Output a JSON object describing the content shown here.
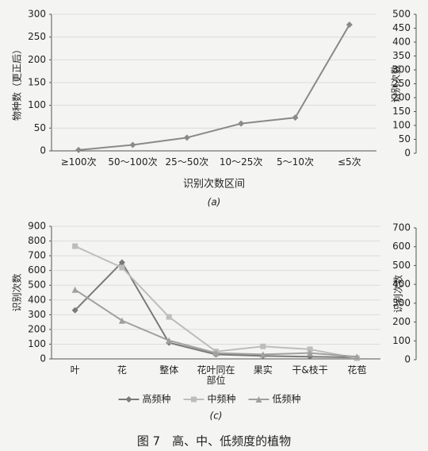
{
  "chart_data": [
    {
      "type": "line",
      "y_label": "物种数（更正后）",
      "x_label": "识别次数区间",
      "caption_label": "(a)",
      "categories": [
        "≥100次",
        "50～100次",
        "25～50次",
        "10～25次",
        "5～10次",
        "≤5次"
      ],
      "values": [
        2,
        13,
        29,
        60,
        73,
        277
      ],
      "color": "#8a8a8a",
      "marker": "diamond",
      "ylim": [
        0,
        300
      ],
      "yticks": [
        0,
        50,
        100,
        150,
        200,
        250,
        300
      ],
      "grid": true
    },
    {
      "type": "line",
      "y_label": "识别次数",
      "ylim": [
        0,
        500
      ],
      "yticks": [
        0,
        50,
        100,
        150,
        200,
        250,
        300,
        350,
        400,
        450,
        500
      ],
      "grid": false
    },
    {
      "type": "line",
      "y_label": "识别次数",
      "caption_label": "(c)",
      "categories": [
        "叶",
        "花",
        "整体",
        "花叶同在部位",
        "果实",
        "干&枝干",
        "花苞"
      ],
      "series": [
        {
          "name": "高频种",
          "color": "#7a7a7a",
          "marker": "diamond",
          "values": [
            330,
            655,
            110,
            30,
            20,
            15,
            10
          ]
        },
        {
          "name": "中频种",
          "color": "#bdbdbd",
          "marker": "square",
          "values": [
            765,
            620,
            285,
            50,
            85,
            65,
            5
          ]
        },
        {
          "name": "低频种",
          "color": "#a0a0a0",
          "marker": "triangle",
          "values": [
            470,
            260,
            125,
            40,
            30,
            40,
            15
          ]
        }
      ],
      "ylim": [
        0,
        900
      ],
      "yticks": [
        0,
        100,
        200,
        300,
        400,
        500,
        600,
        700,
        800,
        900
      ],
      "grid": true,
      "legend": "bottom"
    },
    {
      "type": "line",
      "y_label": "识别次数",
      "ylim": [
        0,
        700
      ],
      "yticks": [
        0,
        100,
        200,
        300,
        400,
        500,
        600,
        700
      ],
      "grid": false
    }
  ],
  "caption": "图 7　高、中、低频度的植物"
}
